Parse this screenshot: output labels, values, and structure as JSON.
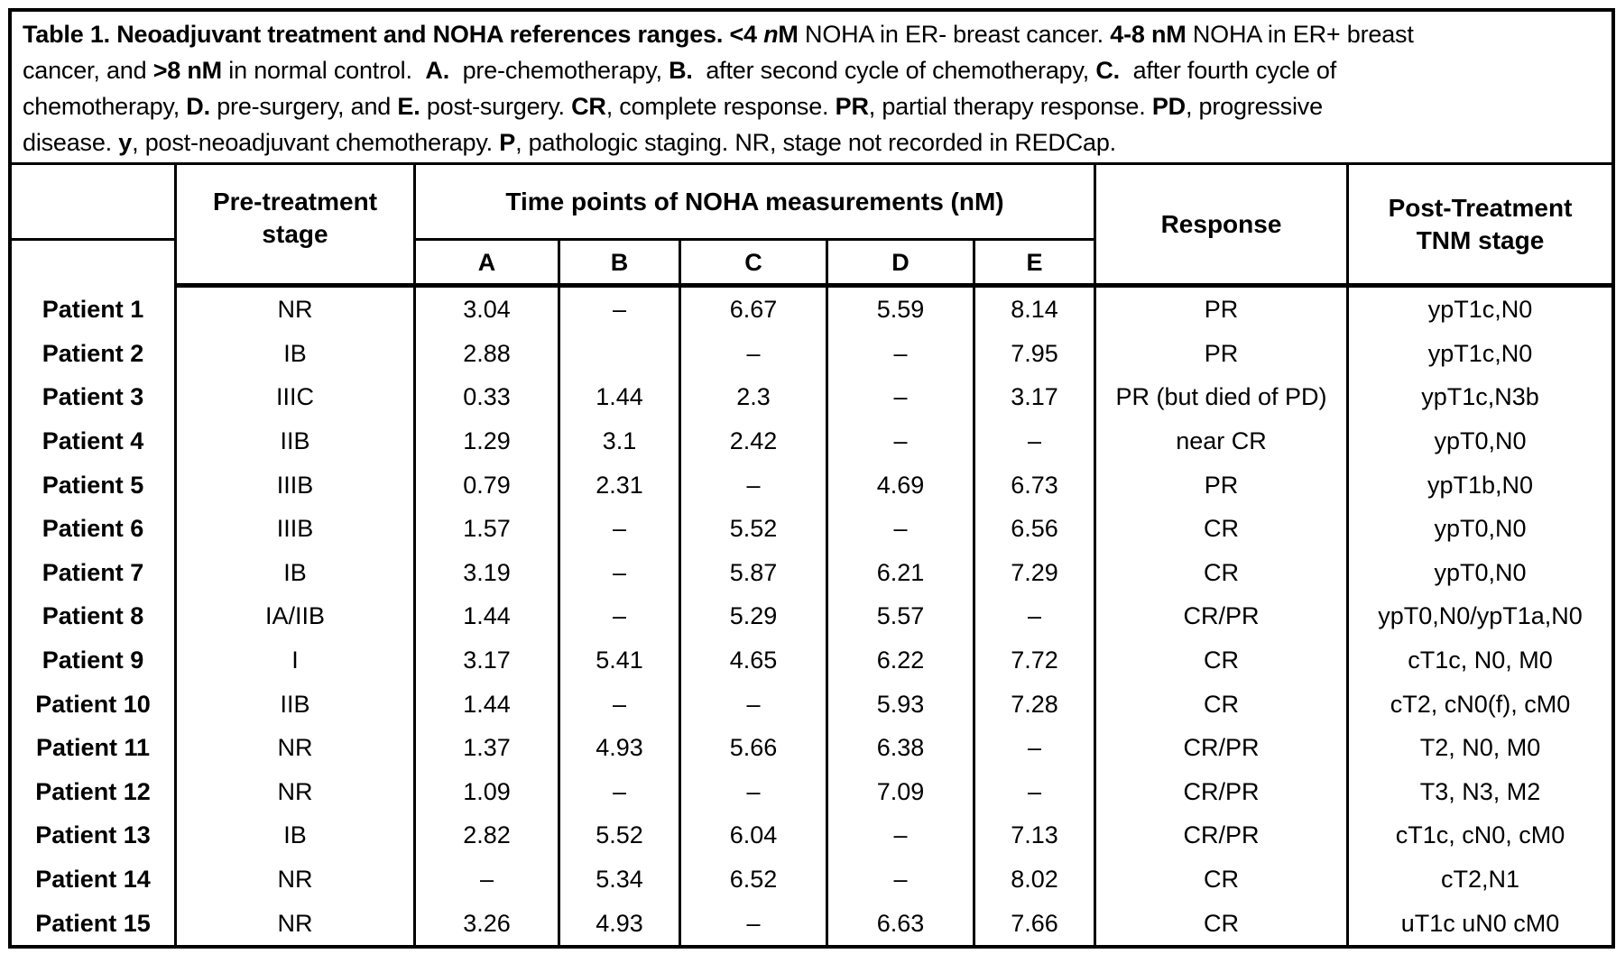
{
  "colors": {
    "text": "#000000",
    "background": "#ffffff",
    "border": "#000000"
  },
  "caption": {
    "lines": [
      [
        {
          "t": "Table 1. Neoadjuvant treatment and NOHA references ranges. ",
          "b": true
        },
        {
          "t": "<4 ",
          "b": true
        },
        {
          "t": "n",
          "b": true,
          "i": true
        },
        {
          "t": "M",
          "b": true
        },
        {
          "t": " NOHA in ER- breast cancer. ",
          "b": false
        },
        {
          "t": "4-8 nM",
          "b": true
        },
        {
          "t": " NOHA in ER+ breast",
          "b": false
        }
      ],
      [
        {
          "t": "cancer, and ",
          "b": false
        },
        {
          "t": ">8 nM",
          "b": true
        },
        {
          "t": " in normal control.  ",
          "b": false
        },
        {
          "t": "A.",
          "b": true
        },
        {
          "t": "  pre-chemotherapy, ",
          "b": false
        },
        {
          "t": "B.",
          "b": true
        },
        {
          "t": "  after second cycle of chemotherapy, ",
          "b": false
        },
        {
          "t": "C.",
          "b": true
        },
        {
          "t": "  after fourth cycle of",
          "b": false
        }
      ],
      [
        {
          "t": "chemotherapy, ",
          "b": false
        },
        {
          "t": "D.",
          "b": true
        },
        {
          "t": " pre-surgery, and ",
          "b": false
        },
        {
          "t": "E.",
          "b": true
        },
        {
          "t": " post-surgery. ",
          "b": false
        },
        {
          "t": "CR",
          "b": true
        },
        {
          "t": ", complete response. ",
          "b": false
        },
        {
          "t": "PR",
          "b": true
        },
        {
          "t": ", partial therapy response. ",
          "b": false
        },
        {
          "t": "PD",
          "b": true
        },
        {
          "t": ", progressive",
          "b": false
        }
      ],
      [
        {
          "t": "disease. ",
          "b": false
        },
        {
          "t": "y",
          "b": true
        },
        {
          "t": ", post-neoadjuvant chemotherapy. ",
          "b": false
        },
        {
          "t": "P",
          "b": true
        },
        {
          "t": ", pathologic staging. ",
          "b": false
        },
        {
          "t": "NR, stage not recorded in REDCap.",
          "b": false
        }
      ]
    ]
  },
  "table": {
    "headers": {
      "corner": "",
      "pretreatment": "Pre-treatment stage",
      "timepoints": "Time points of NOHA measurements (nM)",
      "response": "Response",
      "tnm": "Post-Treatment TNM stage"
    },
    "subheaders": [
      "A",
      "B",
      "C",
      "D",
      "E"
    ],
    "rows": [
      {
        "patient": "Patient 1",
        "stage": "NR",
        "a": "3.04",
        "b": "–",
        "c": "6.67",
        "d": "5.59",
        "e": "8.14",
        "response": "PR",
        "tnm": "ypT1c,N0"
      },
      {
        "patient": "Patient 2",
        "stage": "IB",
        "a": "2.88",
        "b": "",
        "c": "–",
        "d": "–",
        "e": "7.95",
        "response": "PR",
        "tnm": "ypT1c,N0"
      },
      {
        "patient": "Patient 3",
        "stage": "IIIC",
        "a": "0.33",
        "b": "1.44",
        "c": "2.3",
        "d": "–",
        "e": "3.17",
        "response": "PR (but died of PD)",
        "tnm": "ypT1c,N3b"
      },
      {
        "patient": "Patient 4",
        "stage": "IIB",
        "a": "1.29",
        "b": "3.1",
        "c": "2.42",
        "d": "–",
        "e": "–",
        "response": "near CR",
        "tnm": "ypT0,N0"
      },
      {
        "patient": "Patient 5",
        "stage": "IIIB",
        "a": "0.79",
        "b": "2.31",
        "c": "–",
        "d": "4.69",
        "e": "6.73",
        "response": "PR",
        "tnm": "ypT1b,N0"
      },
      {
        "patient": "Patient 6",
        "stage": "IIIB",
        "a": "1.57",
        "b": "–",
        "c": "5.52",
        "d": "–",
        "e": "6.56",
        "response": "CR",
        "tnm": "ypT0,N0"
      },
      {
        "patient": "Patient 7",
        "stage": "IB",
        "a": "3.19",
        "b": "–",
        "c": "5.87",
        "d": "6.21",
        "e": "7.29",
        "response": "CR",
        "tnm": "ypT0,N0"
      },
      {
        "patient": "Patient 8",
        "stage": "IA/IIB",
        "a": "1.44",
        "b": "–",
        "c": "5.29",
        "d": "5.57",
        "e": "–",
        "response": "CR/PR",
        "tnm": "ypT0,N0/ypT1a,N0"
      },
      {
        "patient": "Patient 9",
        "stage": "I",
        "a": "3.17",
        "b": "5.41",
        "c": "4.65",
        "d": "6.22",
        "e": "7.72",
        "response": "CR",
        "tnm": "cT1c, N0, M0"
      },
      {
        "patient": "Patient 10",
        "stage": "IIB",
        "a": "1.44",
        "b": "–",
        "c": "–",
        "d": "5.93",
        "e": "7.28",
        "response": "CR",
        "tnm": "cT2, cN0(f), cM0"
      },
      {
        "patient": "Patient 11",
        "stage": "NR",
        "a": "1.37",
        "b": "4.93",
        "c": "5.66",
        "d": "6.38",
        "e": "–",
        "response": "CR/PR",
        "tnm": "T2, N0, M0"
      },
      {
        "patient": "Patient 12",
        "stage": "NR",
        "a": "1.09",
        "b": "–",
        "c": "–",
        "d": "7.09",
        "e": "–",
        "response": "CR/PR",
        "tnm": "T3, N3, M2"
      },
      {
        "patient": "Patient 13",
        "stage": "IB",
        "a": "2.82",
        "b": "5.52",
        "c": "6.04",
        "d": "–",
        "e": "7.13",
        "response": "CR/PR",
        "tnm": "cT1c, cN0, cM0"
      },
      {
        "patient": "Patient 14",
        "stage": "NR",
        "a": "–",
        "b": "5.34",
        "c": "6.52",
        "d": "–",
        "e": "8.02",
        "response": "CR",
        "tnm": "cT2,N1"
      },
      {
        "patient": "Patient 15",
        "stage": "NR",
        "a": "3.26",
        "b": "4.93",
        "c": "–",
        "d": "6.63",
        "e": "7.66",
        "response": "CR",
        "tnm": "uT1c uN0 cM0"
      }
    ]
  }
}
